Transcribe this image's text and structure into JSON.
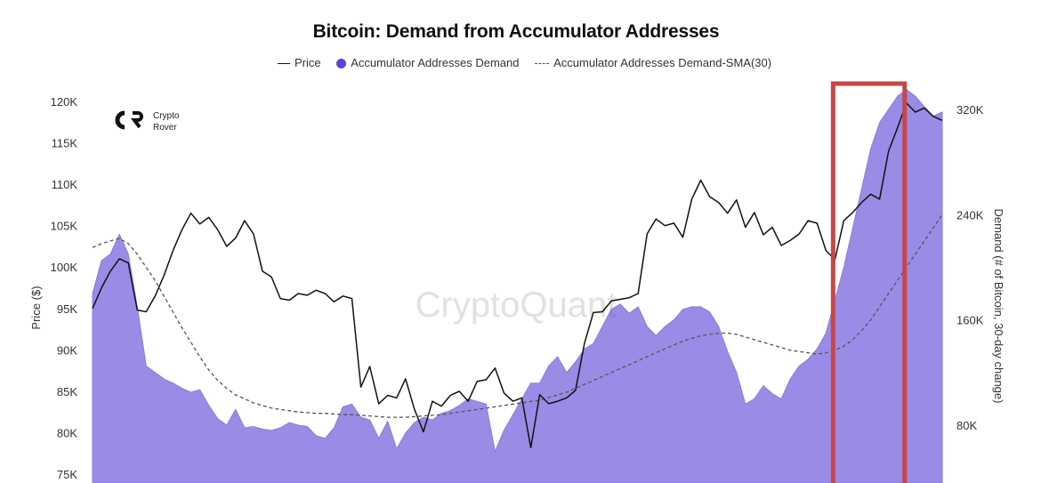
{
  "chart_data": {
    "type": "line",
    "title": "Bitcoin: Demand from Accumulator Addresses",
    "legend": {
      "placement": "top-center",
      "entries": [
        "Price",
        "Accumulator Addresses Demand",
        "Accumulator Addresses Demand-SMA(30)"
      ]
    },
    "y_left": {
      "label": "Price ($)",
      "ticks": [
        "120K",
        "115K",
        "110K",
        "105K",
        "100K",
        "95K",
        "90K",
        "85K",
        "80K",
        "75K"
      ],
      "tick_values": [
        120000,
        115000,
        110000,
        105000,
        100000,
        95000,
        90000,
        85000,
        80000,
        75000
      ]
    },
    "y_right": {
      "label": "Demand (# of Bitcoin, 30-day change)",
      "ticks": [
        "320K",
        "240K",
        "160K",
        "80K"
      ],
      "tick_values": [
        320000,
        240000,
        160000,
        80000
      ]
    },
    "x": [
      0,
      1,
      2,
      3,
      4,
      5,
      6,
      7,
      8,
      9,
      10,
      11,
      12,
      13,
      14,
      15,
      16,
      17,
      18,
      19,
      20,
      21,
      22,
      23,
      24,
      25,
      26,
      27,
      28,
      29,
      30,
      31,
      32,
      33,
      34,
      35,
      36,
      37,
      38,
      39,
      40,
      41,
      42,
      43,
      44,
      45,
      46,
      47,
      48,
      49,
      50,
      51,
      52,
      53,
      54,
      55,
      56,
      57,
      58,
      59,
      60,
      61,
      62,
      63,
      64,
      65,
      66,
      67,
      68,
      69,
      70,
      71,
      72,
      73,
      74,
      75,
      76,
      77,
      78,
      79,
      80,
      81,
      82,
      83,
      84,
      85,
      86,
      87,
      88,
      89,
      90,
      91,
      92,
      93,
      94,
      95
    ],
    "series": [
      {
        "name": "Price",
        "style": "solid",
        "color": "#111111",
        "axis": "left",
        "values": [
          95000,
          97500,
          99500,
          101000,
          100500,
          94800,
          94600,
          96500,
          99000,
          102000,
          104500,
          106500,
          105200,
          106000,
          104500,
          102500,
          103500,
          105600,
          104000,
          99500,
          98800,
          96200,
          96000,
          96800,
          96600,
          97200,
          96800,
          95800,
          96500,
          96200,
          85500,
          88000,
          83500,
          84500,
          84200,
          86500,
          82800,
          80100,
          83800,
          83200,
          84500,
          85000,
          83800,
          86200,
          86400,
          87800,
          84800,
          83800,
          84200,
          78200,
          84600,
          83500,
          83800,
          84200,
          85100,
          90800,
          94500,
          94600,
          95900,
          96100,
          96300,
          96800,
          104000,
          105800,
          105000,
          105300,
          103600,
          108200,
          110500,
          108500,
          107800,
          106500,
          108100,
          104800,
          106600,
          103900,
          104800,
          102600,
          103200,
          104000,
          105600,
          105300,
          102000,
          100900,
          105600,
          106600,
          107800,
          108800,
          108200,
          114000,
          116800,
          119800,
          118700,
          119200,
          118200,
          117700
        ]
      },
      {
        "name": "Accumulator Addresses Demand",
        "style": "area",
        "color": "#5b45d6",
        "axis": "right",
        "values": [
          180000,
          205000,
          210000,
          225000,
          210000,
          170000,
          125000,
          120000,
          115000,
          112000,
          108000,
          105000,
          107000,
          95000,
          85000,
          80000,
          92000,
          78000,
          79000,
          77000,
          76000,
          78000,
          82000,
          80000,
          79000,
          72000,
          70000,
          78000,
          94000,
          96000,
          86000,
          84000,
          70000,
          83000,
          62000,
          74000,
          82000,
          86000,
          84000,
          89000,
          91000,
          95000,
          100000,
          98000,
          96000,
          60000,
          76000,
          88000,
          100000,
          112000,
          112000,
          125000,
          132000,
          120000,
          128000,
          138000,
          142000,
          155000,
          168000,
          172000,
          165000,
          170000,
          155000,
          148000,
          155000,
          160000,
          168000,
          170000,
          170000,
          166000,
          155000,
          136000,
          120000,
          96000,
          100000,
          110000,
          104000,
          100000,
          115000,
          125000,
          130000,
          138000,
          150000,
          175000,
          200000,
          230000,
          260000,
          290000,
          310000,
          320000,
          330000,
          335000,
          330000,
          322000,
          315000,
          318000
        ]
      },
      {
        "name": "Accumulator Addresses Demand-SMA(30)",
        "style": "dashed",
        "color": "#555555",
        "axis": "right",
        "values": [
          215000,
          218000,
          220000,
          222000,
          218000,
          210000,
          200000,
          190000,
          178000,
          166000,
          154000,
          143000,
          132000,
          122000,
          114000,
          108000,
          103000,
          100000,
          97000,
          95000,
          93000,
          92000,
          91000,
          90000,
          89500,
          89000,
          89000,
          88500,
          88000,
          88000,
          87500,
          87000,
          86500,
          86000,
          86000,
          86000,
          86500,
          87000,
          87500,
          88000,
          89000,
          90000,
          91000,
          92000,
          93000,
          94000,
          95000,
          96000,
          97000,
          98000,
          99000,
          101000,
          103000,
          105000,
          108000,
          111000,
          114000,
          117000,
          120000,
          123000,
          126000,
          129000,
          132000,
          135000,
          138000,
          141000,
          144000,
          146000,
          148000,
          149000,
          150000,
          150000,
          149000,
          147000,
          145000,
          143000,
          141000,
          139000,
          137000,
          136000,
          135000,
          134000,
          135000,
          137000,
          140000,
          145000,
          152000,
          160000,
          170000,
          180000,
          190000,
          200000,
          210000,
          220000,
          230000,
          240000
        ]
      }
    ],
    "annotations": {
      "highlight_box_color": "#c94646",
      "highlight_range_x": [
        83,
        90
      ],
      "watermark": "CryptoQuant",
      "logo_text": [
        "Crypto",
        "Rover"
      ]
    }
  }
}
